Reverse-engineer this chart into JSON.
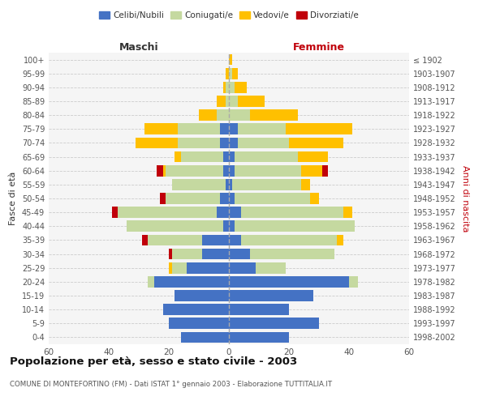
{
  "age_groups": [
    "100+",
    "95-99",
    "90-94",
    "85-89",
    "80-84",
    "75-79",
    "70-74",
    "65-69",
    "60-64",
    "55-59",
    "50-54",
    "45-49",
    "40-44",
    "35-39",
    "30-34",
    "25-29",
    "20-24",
    "15-19",
    "10-14",
    "5-9",
    "0-4"
  ],
  "birth_years": [
    "≤ 1902",
    "1903-1907",
    "1908-1912",
    "1913-1917",
    "1918-1922",
    "1923-1927",
    "1928-1932",
    "1933-1937",
    "1938-1942",
    "1943-1947",
    "1948-1952",
    "1953-1957",
    "1958-1962",
    "1963-1967",
    "1968-1972",
    "1973-1977",
    "1978-1982",
    "1983-1987",
    "1988-1992",
    "1993-1997",
    "1998-2002"
  ],
  "colors": {
    "celibi": "#4472c4",
    "coniugati": "#c5d9a0",
    "vedovi": "#ffc000",
    "divorziati": "#c0000a"
  },
  "males": {
    "celibi": [
      0,
      0,
      0,
      0,
      0,
      3,
      3,
      2,
      2,
      1,
      3,
      4,
      2,
      9,
      9,
      14,
      25,
      18,
      22,
      20,
      16
    ],
    "coniugati": [
      0,
      0,
      1,
      1,
      4,
      14,
      14,
      14,
      19,
      18,
      18,
      33,
      32,
      18,
      10,
      5,
      2,
      0,
      0,
      0,
      0
    ],
    "vedovi": [
      0,
      1,
      1,
      3,
      6,
      11,
      14,
      2,
      1,
      0,
      0,
      0,
      0,
      0,
      0,
      1,
      0,
      0,
      0,
      0,
      0
    ],
    "divorziati": [
      0,
      0,
      0,
      0,
      0,
      0,
      0,
      0,
      2,
      0,
      2,
      2,
      0,
      2,
      1,
      0,
      0,
      0,
      0,
      0,
      0
    ]
  },
  "females": {
    "celibi": [
      0,
      0,
      0,
      0,
      0,
      3,
      3,
      2,
      2,
      1,
      2,
      4,
      2,
      4,
      7,
      9,
      40,
      28,
      20,
      30,
      20
    ],
    "coniugati": [
      0,
      1,
      2,
      3,
      7,
      16,
      17,
      21,
      22,
      23,
      25,
      34,
      40,
      32,
      28,
      10,
      3,
      0,
      0,
      0,
      0
    ],
    "vedovi": [
      1,
      2,
      4,
      9,
      16,
      22,
      18,
      10,
      7,
      3,
      3,
      3,
      0,
      2,
      0,
      0,
      0,
      0,
      0,
      0,
      0
    ],
    "divorziati": [
      0,
      0,
      0,
      0,
      0,
      0,
      0,
      0,
      2,
      0,
      0,
      0,
      0,
      0,
      0,
      0,
      0,
      0,
      0,
      0,
      0
    ]
  },
  "xlim": 60,
  "title": "Popolazione per età, sesso e stato civile - 2003",
  "subtitle": "COMUNE DI MONTEFORTINO (FM) - Dati ISTAT 1° gennaio 2003 - Elaborazione TUTTITALIA.IT",
  "ylabel_left": "Fasce di età",
  "ylabel_right": "Anni di nascita",
  "xlabel_left": "Maschi",
  "xlabel_right": "Femmine",
  "legend_labels": [
    "Celibi/Nubili",
    "Coniugati/e",
    "Vedovi/e",
    "Divorziati/e"
  ],
  "bg_color": "#ffffff",
  "plot_bg_color": "#f5f5f5"
}
